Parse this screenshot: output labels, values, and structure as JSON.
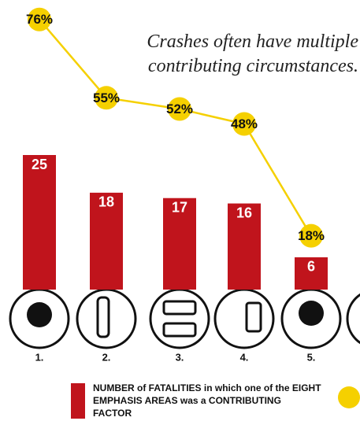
{
  "chart_data": {
    "type": "bar_line",
    "annotation": "Crashes often have multiple contributing circumstances.",
    "categories": [
      "1.",
      "2.",
      "3.",
      "4.",
      "5."
    ],
    "series": [
      {
        "name": "NUMBER of FATALITIES in which one of the EIGHT EMPHASIS AREAS was a CONTRIBUTING FACTOR",
        "type": "bar",
        "color": "#c0141c",
        "values": [
          25,
          18,
          17,
          16,
          6
        ]
      },
      {
        "type": "line",
        "color": "#f5d000",
        "values": [
          76,
          55,
          52,
          48,
          18
        ],
        "value_labels": [
          "76%",
          "55%",
          "52%",
          "48%",
          "18%"
        ]
      }
    ]
  }
}
